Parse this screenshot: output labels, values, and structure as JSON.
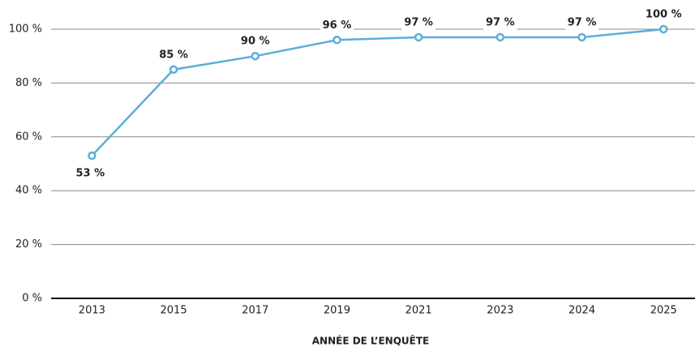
{
  "chart_data": {
    "type": "line",
    "x_label": "ANNÉE DE L’ENQUÊTE",
    "categories": [
      "2013",
      "2015",
      "2017",
      "2019",
      "2021",
      "2023",
      "2024",
      "2025"
    ],
    "series": [
      {
        "name": null,
        "color": "#5aafd8",
        "values": [
          53,
          85,
          90,
          96,
          97,
          97,
          97,
          100
        ],
        "value_labels": [
          "53 %",
          "85 %",
          "90 %",
          "96 %",
          "97 %",
          "97 %",
          "97 %",
          "100 %"
        ]
      }
    ],
    "ylim": [
      0,
      100
    ],
    "yticks": [
      {
        "value": 0,
        "label": "0 %"
      },
      {
        "value": 20,
        "label": "20 %"
      },
      {
        "value": 40,
        "label": "40 %"
      },
      {
        "value": 60,
        "label": "60 %"
      },
      {
        "value": 80,
        "label": "80 %"
      },
      {
        "value": 100,
        "label": "100 %"
      }
    ],
    "grid": true
  }
}
